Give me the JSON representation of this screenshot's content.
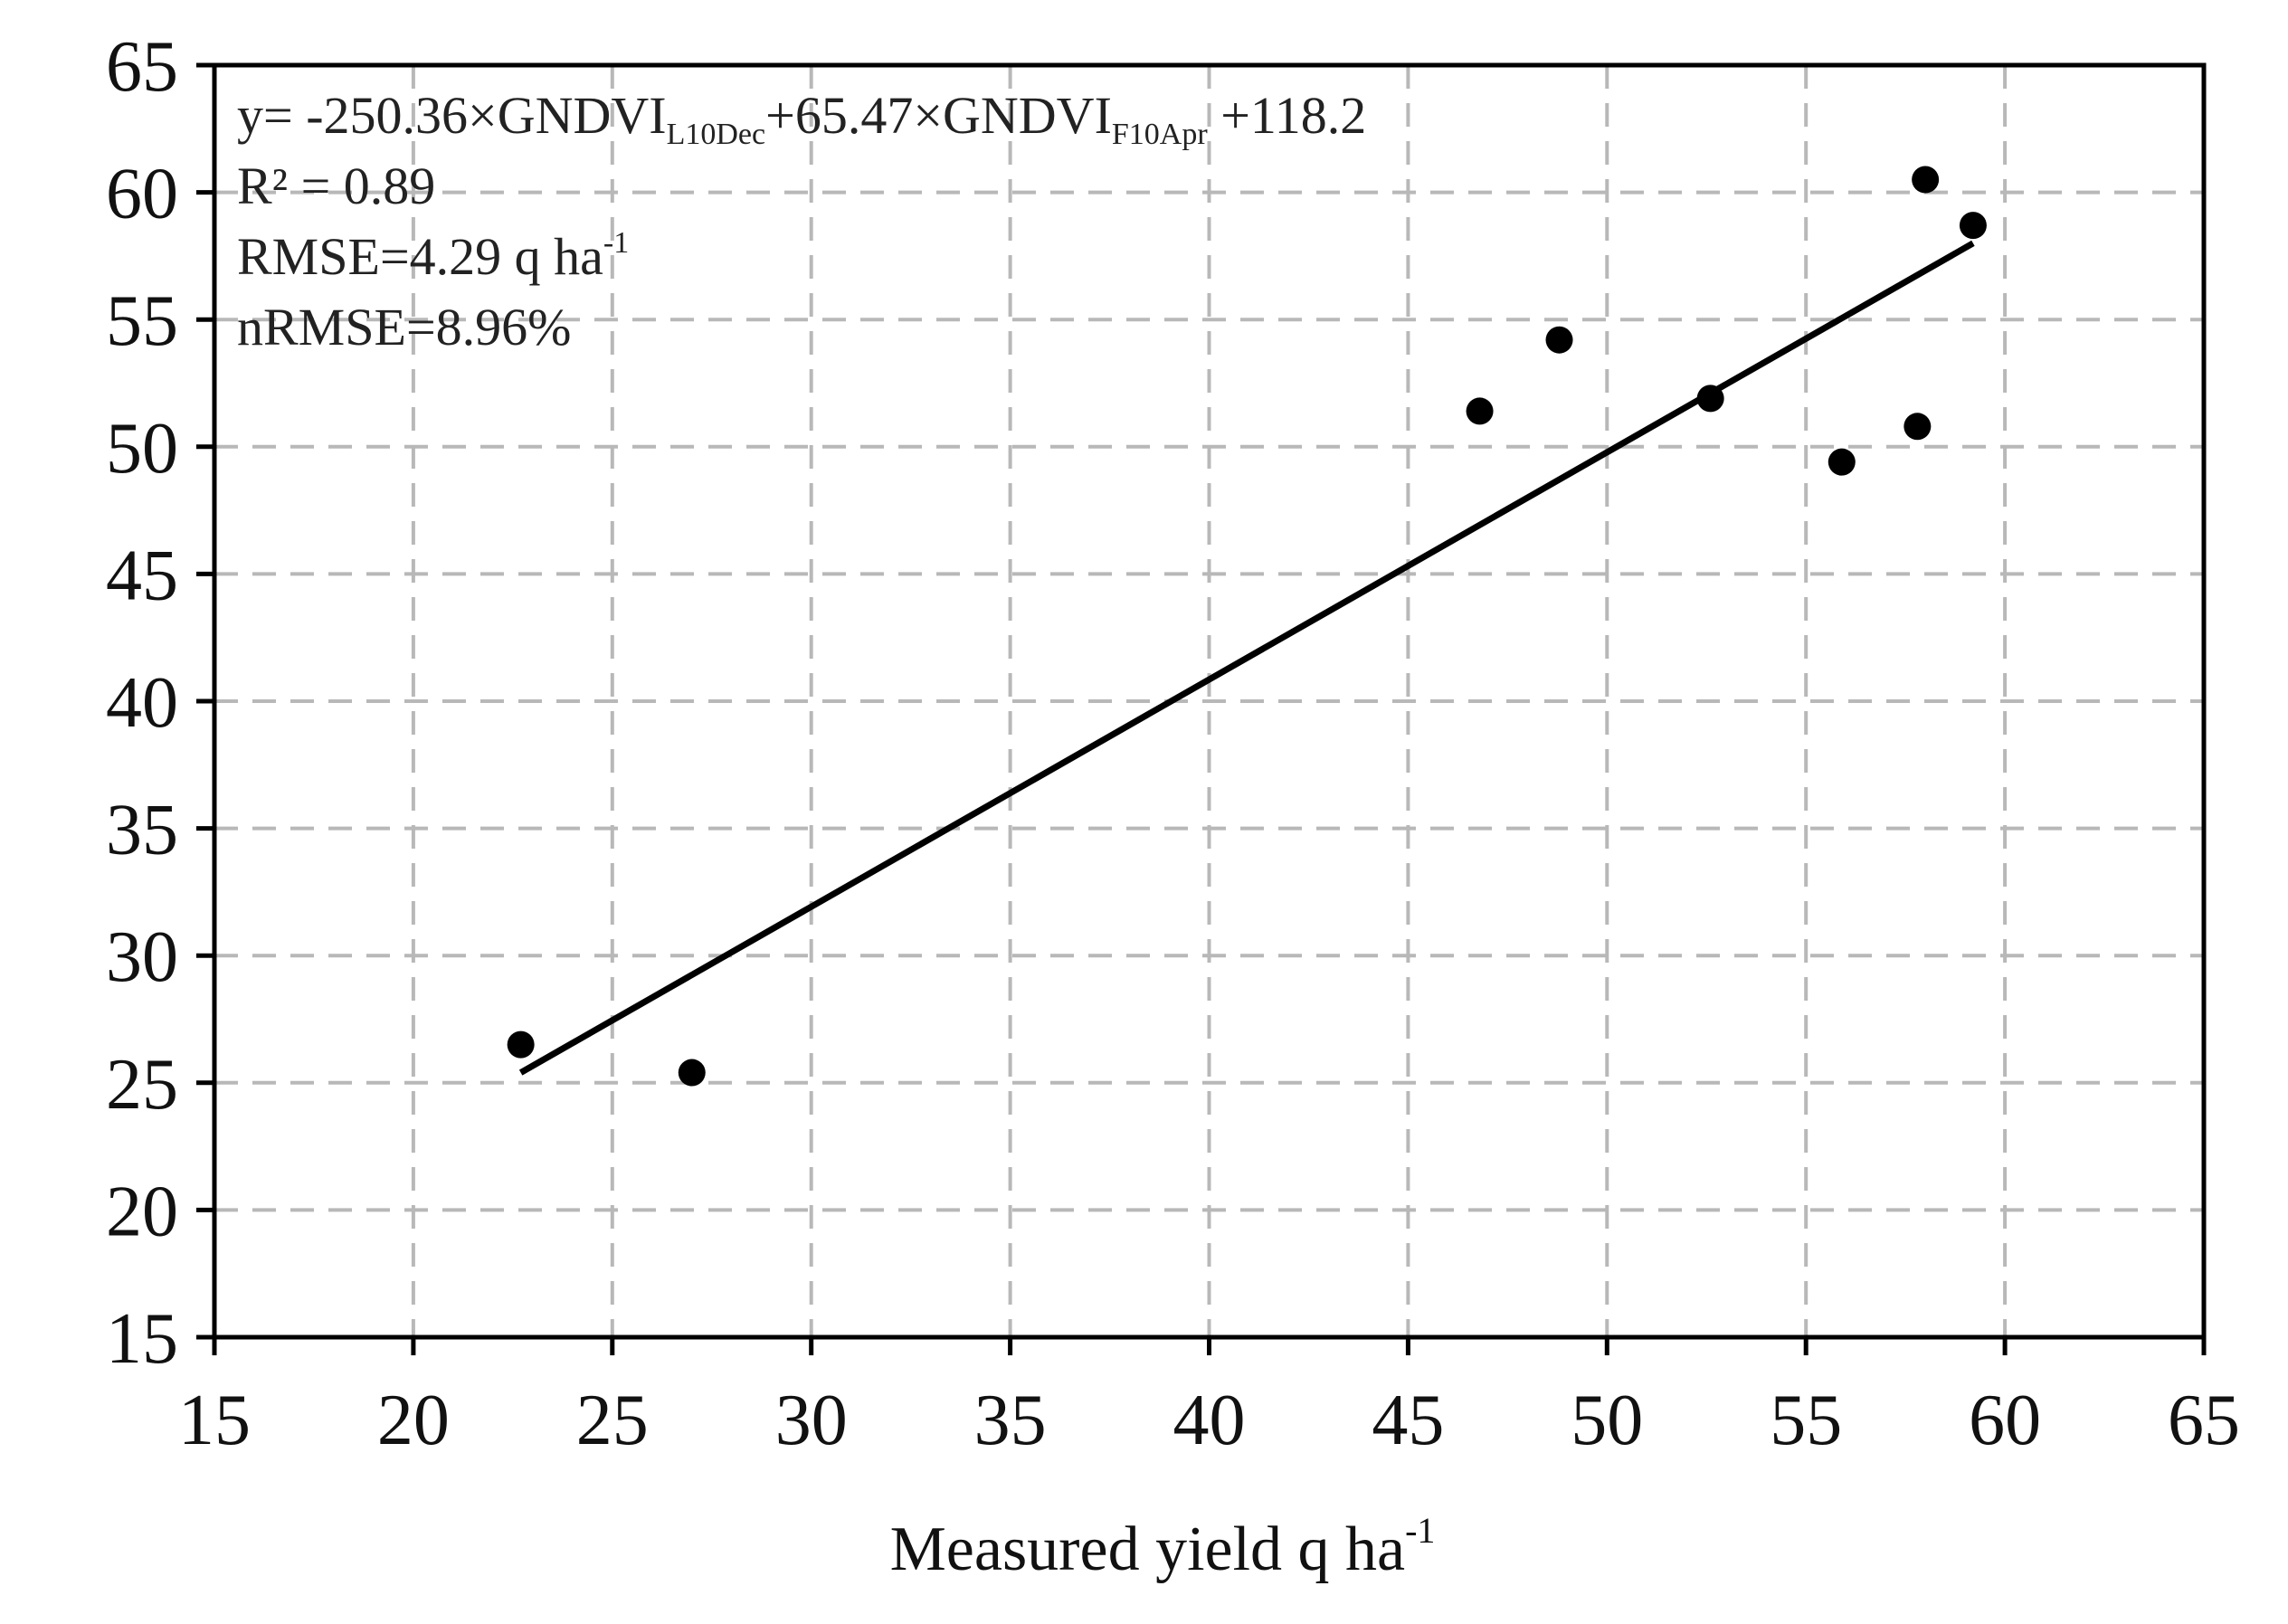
{
  "chart_data": {
    "type": "scatter",
    "xlabel": "Measured yield q ha",
    "xlabel_sup": "-1",
    "ylabel": "",
    "xlim": [
      15,
      65
    ],
    "ylim": [
      15,
      65
    ],
    "xticks": [
      15,
      20,
      25,
      30,
      35,
      40,
      45,
      50,
      55,
      60,
      65
    ],
    "yticks": [
      15,
      20,
      25,
      30,
      35,
      40,
      45,
      50,
      55,
      60,
      65
    ],
    "grid": true,
    "series": [
      {
        "points": [
          {
            "x": 22.7,
            "y": 26.5
          },
          {
            "x": 27.0,
            "y": 25.4
          },
          {
            "x": 46.8,
            "y": 51.4
          },
          {
            "x": 48.8,
            "y": 54.2
          },
          {
            "x": 52.6,
            "y": 51.9
          },
          {
            "x": 55.9,
            "y": 49.4
          },
          {
            "x": 57.8,
            "y": 50.8
          },
          {
            "x": 58.0,
            "y": 60.5
          },
          {
            "x": 59.2,
            "y": 58.7
          }
        ]
      }
    ],
    "fit_line": {
      "x": [
        22.7,
        59.2
      ],
      "y": [
        25.4,
        58.0
      ]
    },
    "annotations": {
      "equation": {
        "prefix": "y= -250.36×GNDVI",
        "sub1": "L10Dec",
        "middle": "+65.47×GNDVI",
        "sub2": "F10Apr",
        "suffix": " +118.2"
      },
      "r2": "R² = 0.89",
      "rmse": "RMSE=4.29 q ha",
      "rmse_sup": "-1",
      "nrmse": "nRMSE=8.96%"
    }
  }
}
